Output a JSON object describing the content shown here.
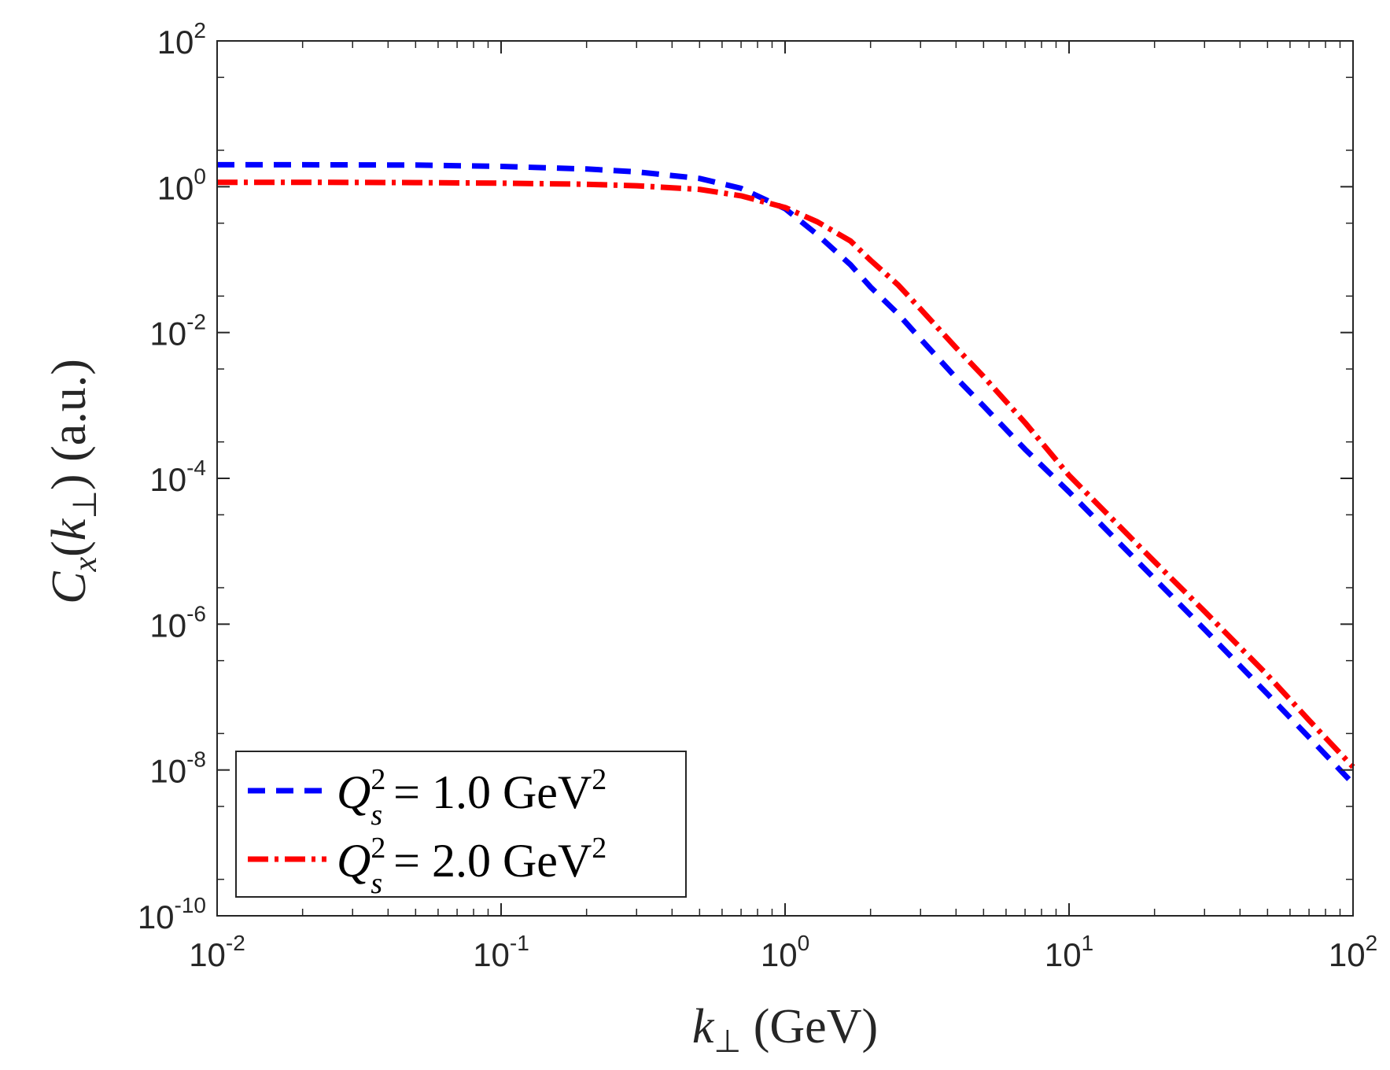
{
  "chart_data": {
    "type": "line",
    "title": "",
    "xlabel": "k⊥ (GeV)",
    "ylabel": "Cx(k⊥)   (a.u.)",
    "xscale": "log",
    "yscale": "log",
    "xlim": [
      0.01,
      100
    ],
    "ylim": [
      1e-10,
      100
    ],
    "grid": false,
    "legend_position": "bottom-left",
    "x_ticks": [
      {
        "value": 0.01,
        "base": "10",
        "exp": "-2"
      },
      {
        "value": 0.1,
        "base": "10",
        "exp": "-1"
      },
      {
        "value": 1,
        "base": "10",
        "exp": "0"
      },
      {
        "value": 10,
        "base": "10",
        "exp": "1"
      },
      {
        "value": 100,
        "base": "10",
        "exp": "2"
      }
    ],
    "y_ticks": [
      {
        "value": 1e-10,
        "base": "10",
        "exp": "-10"
      },
      {
        "value": 1e-08,
        "base": "10",
        "exp": "-8"
      },
      {
        "value": 1e-06,
        "base": "10",
        "exp": "-6"
      },
      {
        "value": 0.0001,
        "base": "10",
        "exp": "-4"
      },
      {
        "value": 0.01,
        "base": "10",
        "exp": "-2"
      },
      {
        "value": 1,
        "base": "10",
        "exp": "0"
      },
      {
        "value": 100,
        "base": "10",
        "exp": "2"
      }
    ],
    "x": [
      0.01,
      0.02,
      0.05,
      0.1,
      0.2,
      0.3,
      0.5,
      0.7,
      1.0,
      1.3,
      1.7,
      2.0,
      2.5,
      3.0,
      4.0,
      5.0,
      7.0,
      10,
      20,
      30,
      50,
      70,
      100
    ],
    "series": [
      {
        "name": "Q_s^2 = 1.0 GeV^2",
        "label_parts": {
          "symbol": "Q",
          "sup": "2",
          "sub": "s",
          "eq": "= 1.0 GeV",
          "unit_sup": "2"
        },
        "color": "#0000ff",
        "style": "dashed",
        "values": [
          2.0,
          2.0,
          1.98,
          1.9,
          1.75,
          1.6,
          1.3,
          0.95,
          0.5,
          0.22,
          0.085,
          0.042,
          0.018,
          0.0082,
          0.0024,
          0.00098,
          0.00025,
          6.5e-05,
          4.2e-06,
          8.5e-07,
          1.1e-07,
          2.8e-08,
          6.5e-09
        ]
      },
      {
        "name": "Q_s^2 = 2.0 GeV^2",
        "label_parts": {
          "symbol": "Q",
          "sup": "2",
          "sub": "s",
          "eq": "= 2.0 GeV",
          "unit_sup": "2"
        },
        "color": "#ff0000",
        "style": "dashdot",
        "values": [
          1.15,
          1.15,
          1.14,
          1.12,
          1.08,
          1.03,
          0.92,
          0.75,
          0.52,
          0.33,
          0.18,
          0.098,
          0.045,
          0.021,
          0.0062,
          0.0025,
          0.00058,
          0.00011,
          7.2e-06,
          1.5e-06,
          2e-07,
          4.8e-08,
          1.1e-08
        ]
      }
    ]
  }
}
